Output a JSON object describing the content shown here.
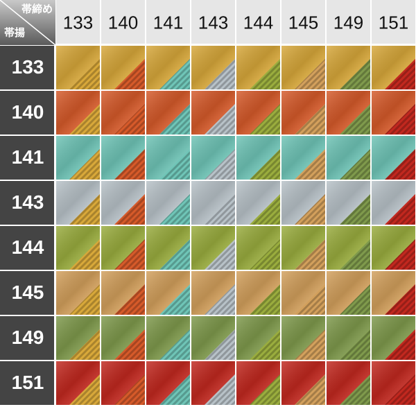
{
  "corner": {
    "top": "帯締め",
    "bottom": "帯揚"
  },
  "obijime": [
    "133",
    "140",
    "141",
    "143",
    "144",
    "145",
    "149",
    "151"
  ],
  "obiage": [
    "133",
    "140",
    "141",
    "143",
    "144",
    "145",
    "149",
    "151"
  ],
  "colors": [
    "#d8a83a",
    "#d65a2a",
    "#6fc5b7",
    "#b8c2c8",
    "#9aad3e",
    "#d3a05c",
    "#7f9a4c",
    "#c2281f"
  ]
}
